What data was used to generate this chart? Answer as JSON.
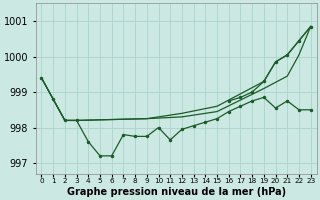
{
  "background_color": "#cce8e2",
  "grid_color": "#aad4cc",
  "line_color": "#1a5c28",
  "hours": [
    0,
    1,
    2,
    3,
    4,
    5,
    6,
    7,
    8,
    9,
    10,
    11,
    12,
    13,
    14,
    15,
    16,
    17,
    18,
    19,
    20,
    21,
    22,
    23
  ],
  "zigzag_x": [
    0,
    1,
    2,
    3,
    4,
    5,
    6,
    7,
    8,
    9,
    10,
    11,
    12,
    13,
    14,
    15,
    16,
    17,
    18,
    19,
    20,
    21,
    22,
    23
  ],
  "zigzag_y": [
    999.4,
    998.8,
    998.2,
    998.2,
    997.6,
    997.2,
    997.2,
    997.8,
    997.75,
    997.75,
    998.0,
    997.65,
    997.95,
    998.05,
    998.15,
    998.25,
    998.45,
    998.6,
    998.75,
    998.85,
    998.55,
    998.75,
    998.5,
    998.5
  ],
  "smooth1_x": [
    0,
    2,
    3,
    9,
    12,
    15,
    19,
    21,
    22,
    23
  ],
  "smooth1_y": [
    999.4,
    998.2,
    998.2,
    998.25,
    998.3,
    998.45,
    999.1,
    999.45,
    1000.05,
    1000.85
  ],
  "smooth2_x": [
    0,
    2,
    3,
    9,
    12,
    15,
    19,
    20,
    21,
    22,
    23
  ],
  "smooth2_y": [
    999.4,
    998.2,
    998.2,
    998.25,
    998.4,
    998.6,
    999.3,
    999.85,
    1000.05,
    1000.45,
    1000.85
  ],
  "dots_upper_x": [
    16,
    17,
    18,
    19,
    20,
    21,
    22,
    23
  ],
  "dots_upper_y": [
    998.75,
    998.85,
    999.0,
    999.3,
    999.85,
    1000.05,
    1000.45,
    1000.85
  ],
  "ylim": [
    996.7,
    1001.5
  ],
  "yticks": [
    997,
    998,
    999,
    1000,
    1001
  ],
  "xlabel": "Graphe pression niveau de la mer (hPa)"
}
